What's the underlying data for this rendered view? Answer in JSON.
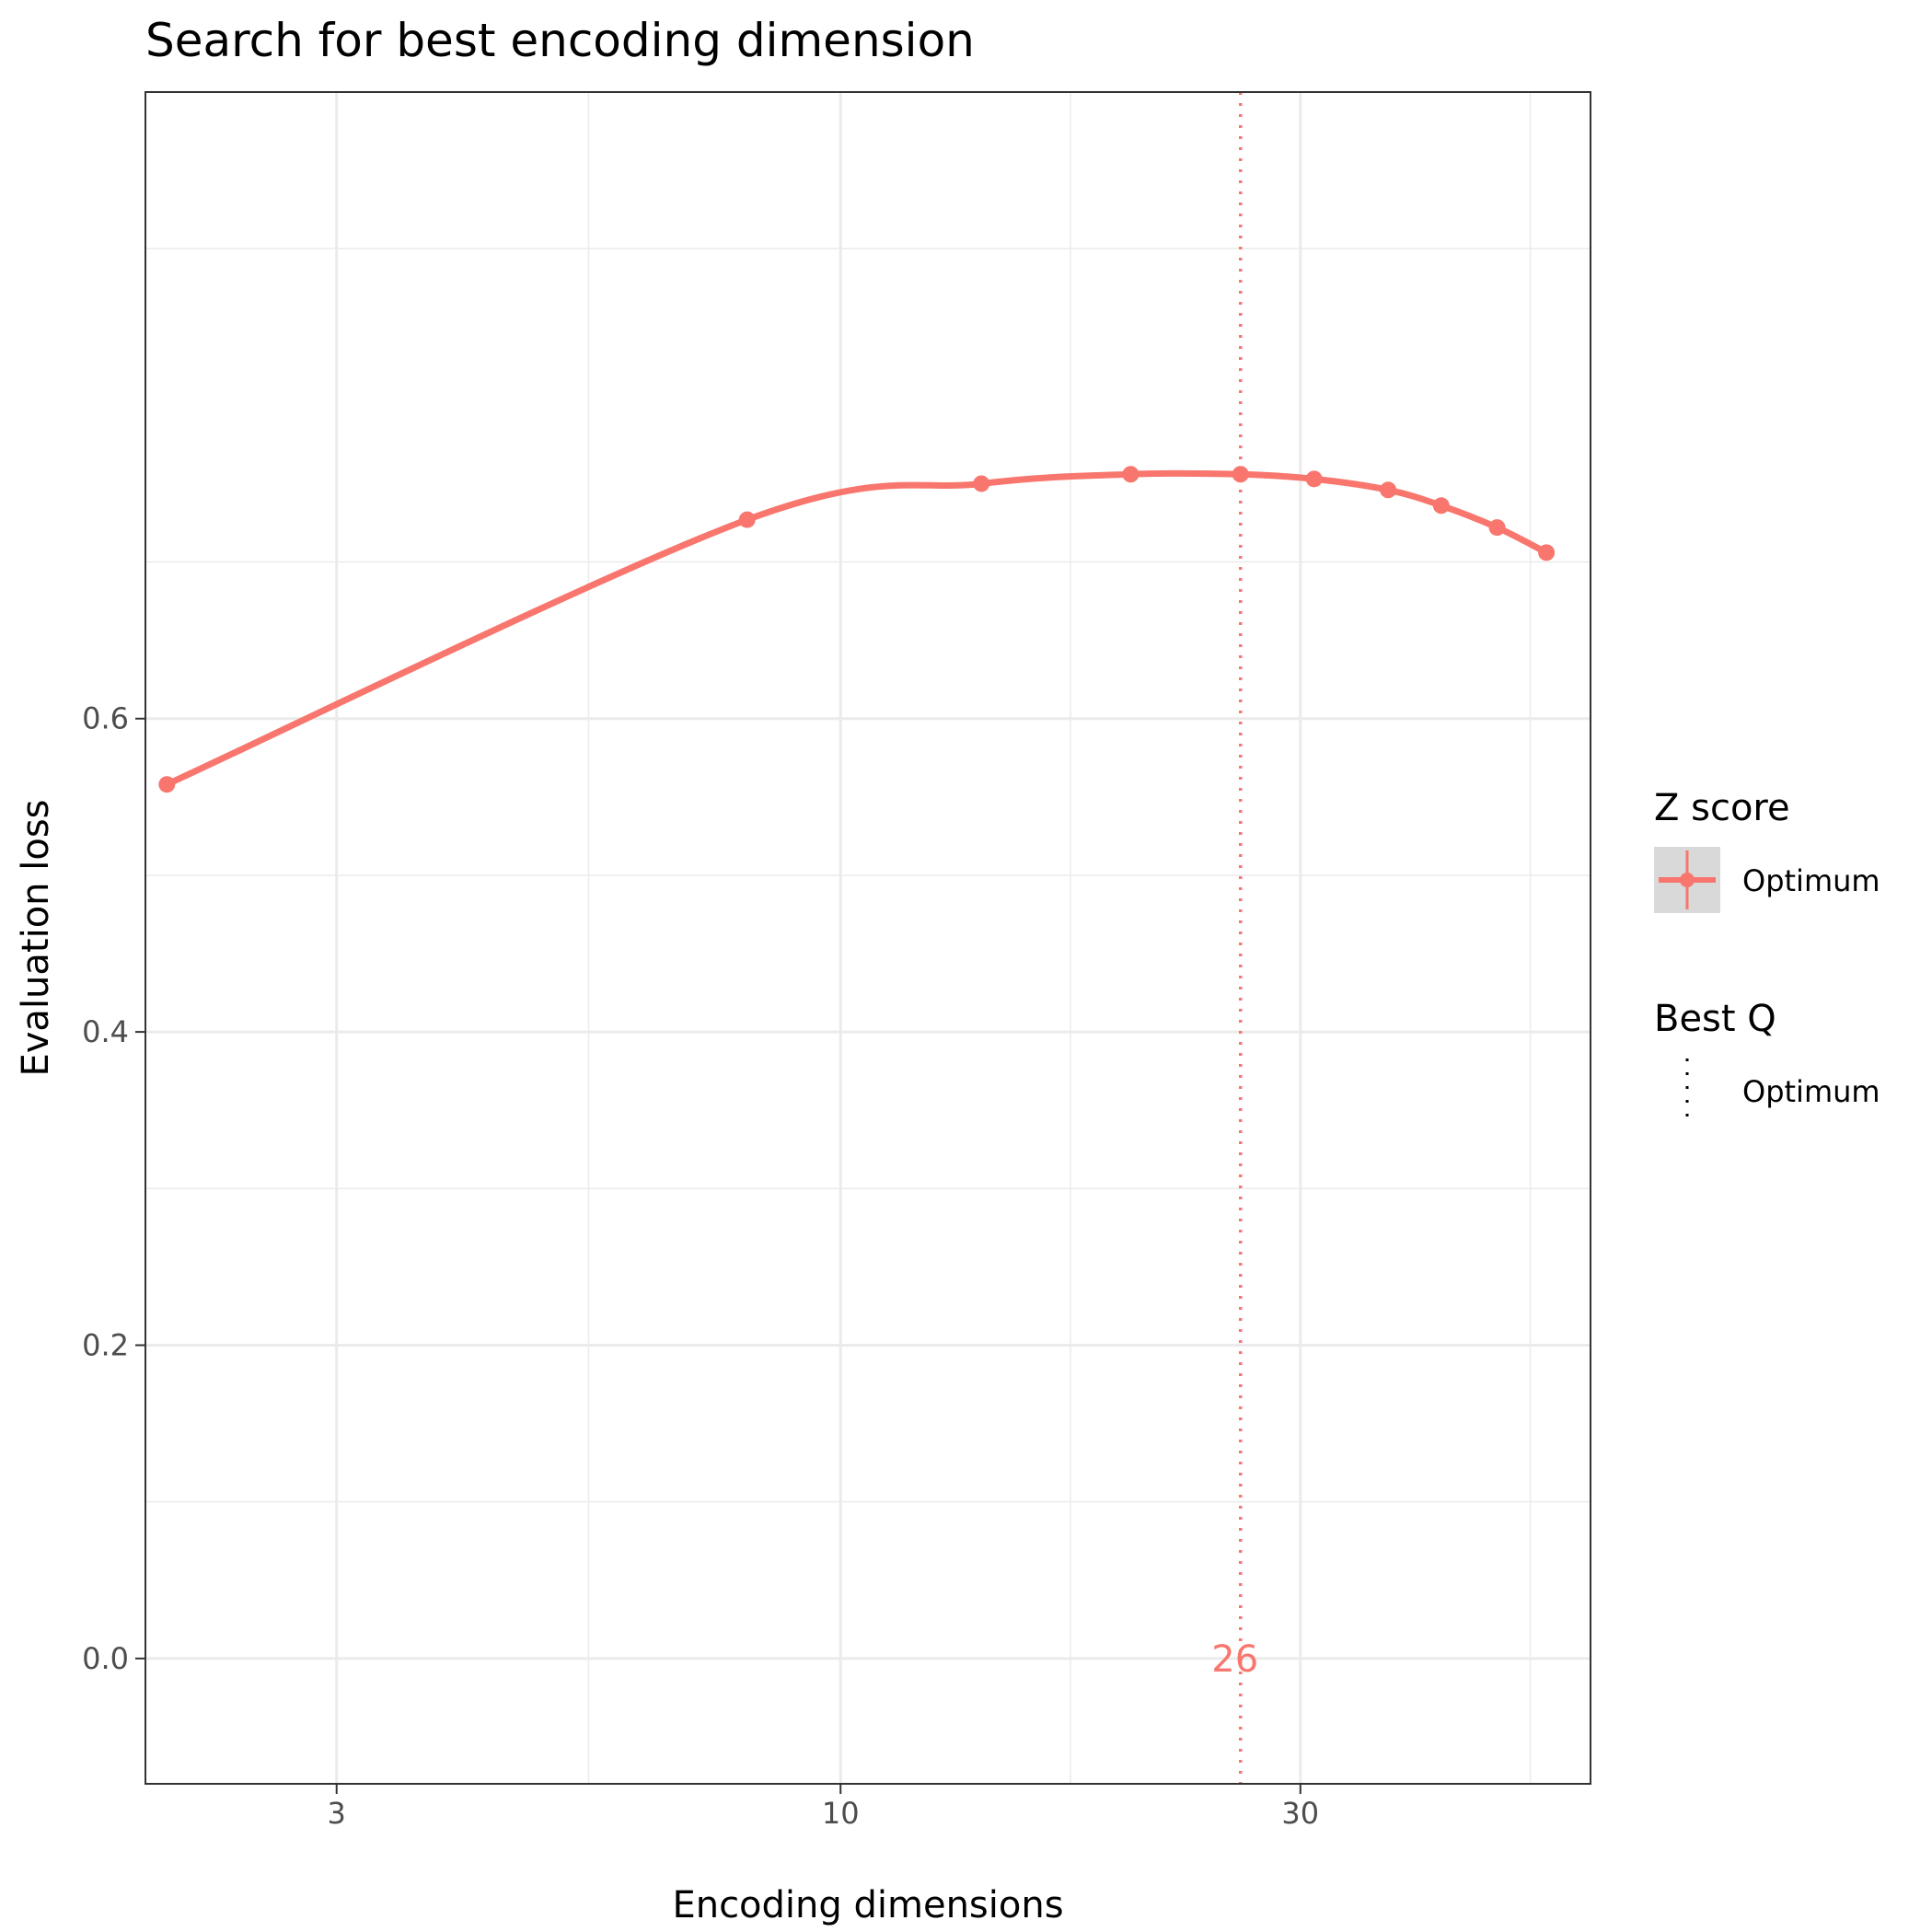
{
  "chart_data": {
    "type": "line",
    "title": "Search for best encoding dimension",
    "xlabel": "Encoding dimensions",
    "ylabel": "Evaluation loss",
    "x_scale": "log10",
    "xlim": [
      1.9,
      60
    ],
    "ylim": [
      -0.08,
      1.0
    ],
    "x_ticks": [
      3,
      10,
      30
    ],
    "x_tick_labels": [
      "3",
      "10",
      "30"
    ],
    "y_ticks": [
      0.0,
      0.2,
      0.4,
      0.6
    ],
    "y_tick_labels": [
      "0.0",
      "0.2",
      "0.4",
      "0.6"
    ],
    "grid": true,
    "series": [
      {
        "name": "Optimum",
        "color": "#F8766D",
        "x": [
          2,
          8,
          14,
          20,
          26,
          31,
          37,
          42,
          48,
          54
        ],
        "y": [
          0.558,
          0.727,
          0.75,
          0.756,
          0.756,
          0.753,
          0.746,
          0.736,
          0.722,
          0.706
        ]
      }
    ],
    "annotations": [
      {
        "type": "vline",
        "x": 26,
        "label": "26",
        "color": "#F8766D",
        "style": "dotted"
      }
    ],
    "legend": {
      "placement": "right",
      "groups": [
        {
          "title": "Z score",
          "entries": [
            {
              "label": "Optimum",
              "color": "#F8766D",
              "key": "line-point"
            }
          ]
        },
        {
          "title": "Best Q",
          "entries": [
            {
              "label": "Optimum",
              "color": "#000000",
              "key": "dotted-line"
            }
          ]
        }
      ]
    }
  }
}
